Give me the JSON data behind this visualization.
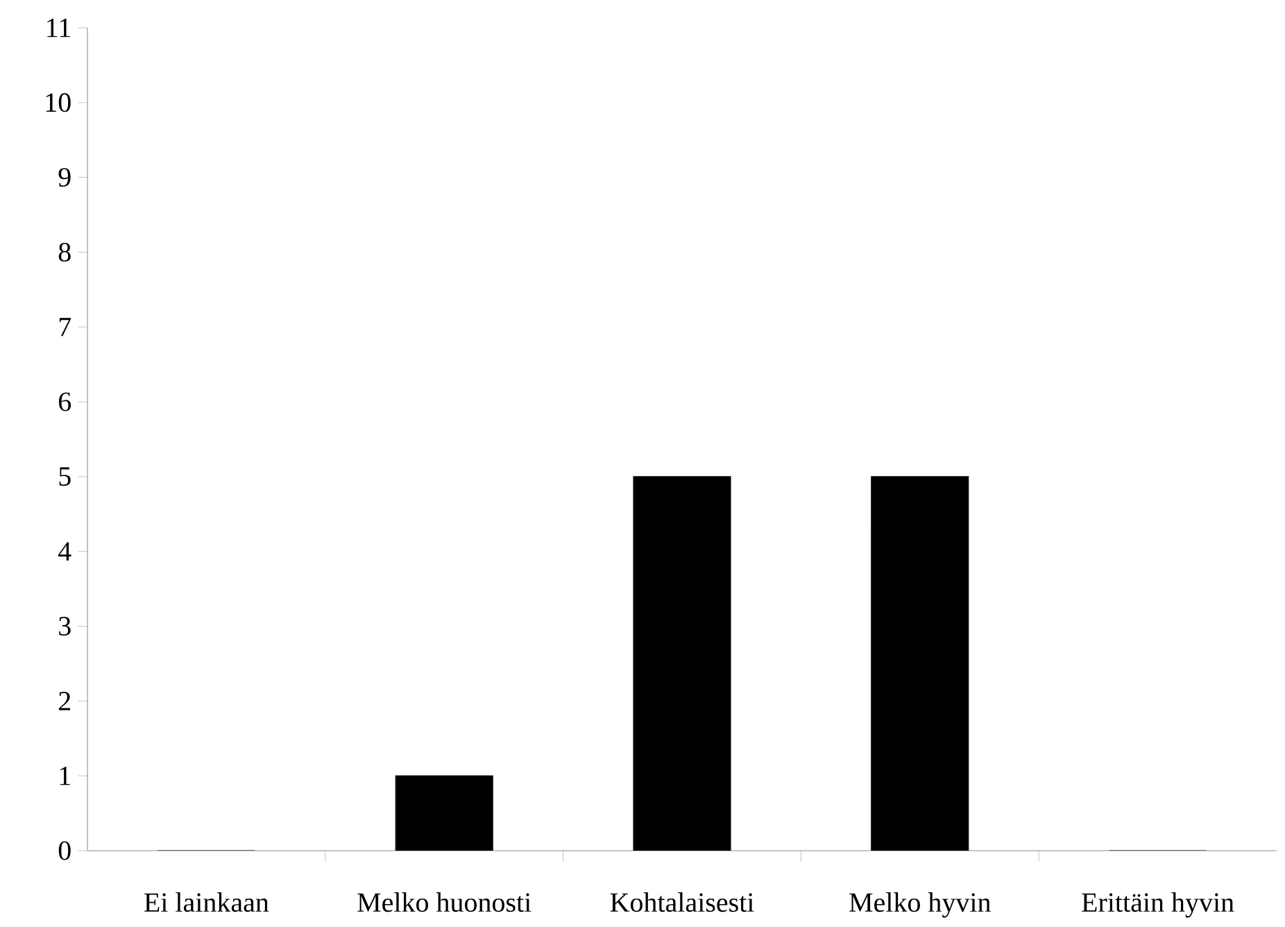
{
  "chart_data": {
    "type": "bar",
    "categories": [
      "Ei lainkaan",
      "Melko huonosti",
      "Kohtalaisesti",
      "Melko hyvin",
      "Erittäin hyvin"
    ],
    "values": [
      0,
      1,
      5,
      5,
      0
    ],
    "color": "#000000",
    "ylim": [
      0,
      11
    ],
    "yticks": [
      0,
      1,
      2,
      3,
      4,
      5,
      6,
      7,
      8,
      9,
      10,
      11
    ],
    "grid": false
  }
}
